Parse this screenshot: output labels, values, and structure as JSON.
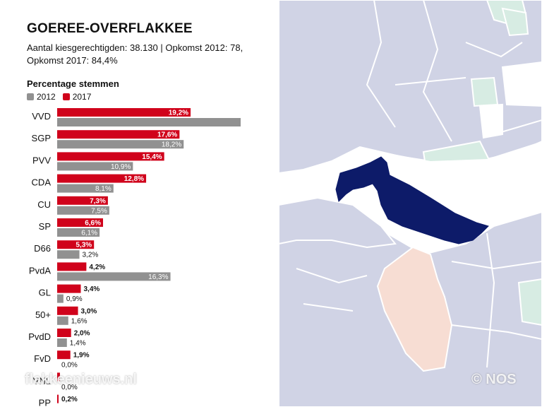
{
  "title": "GOEREE-OVERFLAKKEE",
  "info_line1": "Aantal kiesgerechtigden: 38.130 | Opkomst 2012: 78,",
  "info_line2": "Opkomst 2017: 84,4%",
  "chart_title": "Percentage stemmen",
  "colors": {
    "y2012": "#919191",
    "y2017": "#d0021b",
    "highlight": "#0d1b69",
    "map_base": "#d0d3e5",
    "map_orange": "#f7ddd3",
    "map_green": "#d7ece3",
    "map_white": "#ffffff"
  },
  "chart_data": {
    "type": "bar",
    "orientation": "horizontal",
    "categories": [
      "VVD",
      "SGP",
      "PVV",
      "CDA",
      "CU",
      "SP",
      "D66",
      "PvdA",
      "GL",
      "50+",
      "PvdD",
      "FvD",
      "VNL",
      "PP"
    ],
    "series": [
      {
        "name": "2012",
        "values": [
          26.4,
          18.2,
          10.9,
          8.1,
          7.5,
          6.1,
          3.2,
          16.3,
          0.9,
          1.6,
          1.4,
          0.0,
          0.0,
          null
        ],
        "labels": [
          "",
          "18,2%",
          "10,9%",
          "8,1%",
          "7,5%",
          "6,1%",
          "3,2%",
          "16,3%",
          "0,9%",
          "1,6%",
          "1,4%",
          "0,0%",
          "0,0%",
          ""
        ]
      },
      {
        "name": "2017",
        "values": [
          19.2,
          17.6,
          15.4,
          12.8,
          7.3,
          6.6,
          5.3,
          4.2,
          3.4,
          3.0,
          2.0,
          1.9,
          0.4,
          0.2
        ],
        "labels": [
          "19,2%",
          "17,6%",
          "15,4%",
          "12,8%",
          "7,3%",
          "6,6%",
          "5,3%",
          "4,2%",
          "3,4%",
          "3,0%",
          "2,0%",
          "1,9%",
          "",
          "0,2%"
        ]
      }
    ],
    "legend_position": "top-left",
    "grid": false
  },
  "watermark_left": "flakkeenieuws.nl",
  "watermark_right": "© NOS"
}
